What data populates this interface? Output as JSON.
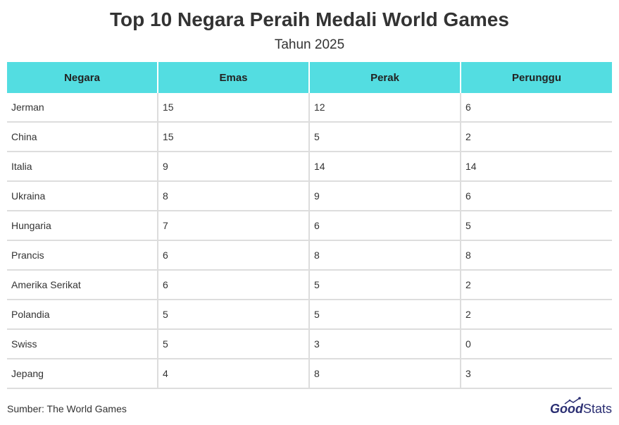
{
  "chart_data": {
    "type": "table",
    "title": "Top 10 Negara Peraih Medali World Games",
    "subtitle": "Tahun 2025",
    "columns": [
      "Negara",
      "Emas",
      "Perak",
      "Perunggu"
    ],
    "rows": [
      [
        "Jerman",
        "15",
        "12",
        "6"
      ],
      [
        "China",
        "15",
        "5",
        "2"
      ],
      [
        "Italia",
        "9",
        "14",
        "14"
      ],
      [
        "Ukraina",
        "8",
        "9",
        "6"
      ],
      [
        "Hungaria",
        "7",
        "6",
        "5"
      ],
      [
        "Prancis",
        "6",
        "8",
        "8"
      ],
      [
        "Amerika Serikat",
        "6",
        "5",
        "2"
      ],
      [
        "Polandia",
        "5",
        "5",
        "2"
      ],
      [
        "Swiss",
        "5",
        "3",
        "0"
      ],
      [
        "Jepang",
        "4",
        "8",
        "3"
      ]
    ],
    "header_color": "#53dde1"
  },
  "footer": {
    "source": "Sumber: The World Games",
    "logo_good": "Good",
    "logo_stats": "Stats"
  }
}
